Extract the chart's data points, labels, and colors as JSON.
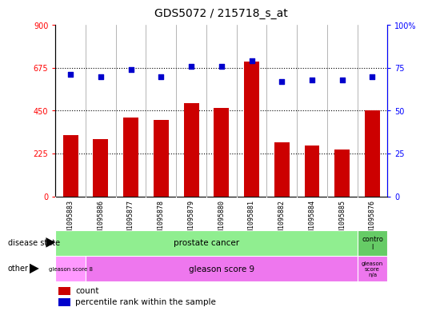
{
  "title": "GDS5072 / 215718_s_at",
  "samples": [
    "GSM1095883",
    "GSM1095886",
    "GSM1095877",
    "GSM1095878",
    "GSM1095879",
    "GSM1095880",
    "GSM1095881",
    "GSM1095882",
    "GSM1095884",
    "GSM1095885",
    "GSM1095876"
  ],
  "counts": [
    320,
    300,
    415,
    400,
    490,
    465,
    710,
    285,
    268,
    248,
    452
  ],
  "percentiles": [
    71,
    70,
    74,
    70,
    76,
    76,
    79,
    67,
    68,
    68,
    70
  ],
  "ylim_left": [
    0,
    900
  ],
  "ylim_right": [
    0,
    100
  ],
  "yticks_left": [
    0,
    225,
    450,
    675,
    900
  ],
  "yticks_right": [
    0,
    25,
    50,
    75,
    100
  ],
  "bar_color": "#cc0000",
  "dot_color": "#0000cc",
  "hlines": [
    225,
    450,
    675
  ],
  "legend_count_label": "count",
  "legend_pct_label": "percentile rank within the sample"
}
